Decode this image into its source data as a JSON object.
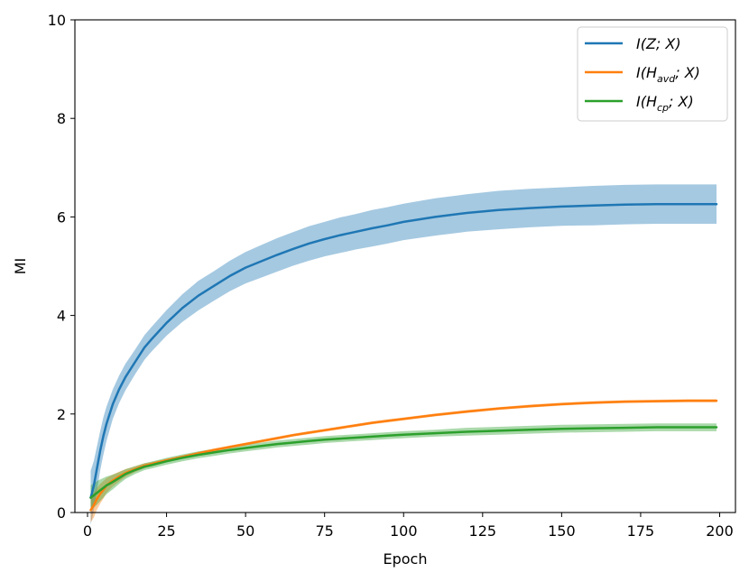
{
  "chart_data": {
    "type": "line",
    "xlabel": "Epoch",
    "ylabel": "MI",
    "xlim": [
      -4,
      205
    ],
    "ylim": [
      0,
      10
    ],
    "xticks": [
      0,
      25,
      50,
      75,
      100,
      125,
      150,
      175,
      200
    ],
    "yticks": [
      0,
      2,
      4,
      6,
      8,
      10
    ],
    "grid": false,
    "legend_position": "top-right",
    "x": [
      1,
      2,
      3,
      4,
      5,
      6,
      8,
      10,
      12,
      15,
      18,
      20,
      25,
      30,
      35,
      40,
      45,
      50,
      55,
      60,
      65,
      70,
      75,
      80,
      85,
      90,
      95,
      100,
      110,
      120,
      130,
      140,
      150,
      160,
      170,
      180,
      190,
      199
    ],
    "series": [
      {
        "name": "I(Z;X)",
        "legend": {
          "base": "I(Z; X)",
          "sub": ""
        },
        "color": "#1f77b4",
        "band_color": "#1f77b4",
        "values": [
          0.3,
          0.55,
          0.9,
          1.25,
          1.55,
          1.8,
          2.2,
          2.5,
          2.75,
          3.05,
          3.35,
          3.5,
          3.85,
          4.15,
          4.4,
          4.6,
          4.8,
          4.97,
          5.1,
          5.23,
          5.35,
          5.46,
          5.55,
          5.63,
          5.7,
          5.77,
          5.83,
          5.9,
          6.0,
          6.08,
          6.14,
          6.18,
          6.21,
          6.23,
          6.25,
          6.26,
          6.26,
          6.26
        ],
        "band": [
          0.55,
          0.5,
          0.45,
          0.4,
          0.38,
          0.35,
          0.3,
          0.28,
          0.27,
          0.25,
          0.25,
          0.25,
          0.26,
          0.28,
          0.3,
          0.3,
          0.31,
          0.32,
          0.33,
          0.34,
          0.34,
          0.35,
          0.35,
          0.36,
          0.36,
          0.37,
          0.37,
          0.37,
          0.38,
          0.38,
          0.39,
          0.39,
          0.39,
          0.4,
          0.4,
          0.4,
          0.4,
          0.4
        ]
      },
      {
        "name": "I(H_avd;X)",
        "legend": {
          "base": "I(H",
          "sub": "avd"
        },
        "color": "#ff7f0e",
        "band_color": "#ff7f0e",
        "values": [
          0.05,
          0.15,
          0.28,
          0.38,
          0.46,
          0.55,
          0.65,
          0.73,
          0.8,
          0.88,
          0.95,
          0.98,
          1.06,
          1.13,
          1.2,
          1.27,
          1.33,
          1.39,
          1.45,
          1.51,
          1.57,
          1.62,
          1.67,
          1.72,
          1.77,
          1.82,
          1.86,
          1.9,
          1.98,
          2.05,
          2.11,
          2.16,
          2.2,
          2.23,
          2.25,
          2.26,
          2.27,
          2.27
        ],
        "band": [
          0.25,
          0.25,
          0.22,
          0.2,
          0.18,
          0.15,
          0.12,
          0.1,
          0.08,
          0.06,
          0.05,
          0.04,
          0.03,
          0.03,
          0.03,
          0.03,
          0.03,
          0.03,
          0.03,
          0.03,
          0.03,
          0.03,
          0.03,
          0.03,
          0.03,
          0.03,
          0.03,
          0.03,
          0.03,
          0.03,
          0.03,
          0.03,
          0.03,
          0.03,
          0.03,
          0.03,
          0.03,
          0.03
        ]
      },
      {
        "name": "I(H_cp;X)",
        "legend": {
          "base": "I(H",
          "sub": "cp"
        },
        "color": "#2ca02c",
        "band_color": "#2ca02c",
        "values": [
          0.3,
          0.35,
          0.4,
          0.45,
          0.5,
          0.55,
          0.62,
          0.7,
          0.78,
          0.86,
          0.93,
          0.96,
          1.04,
          1.11,
          1.17,
          1.22,
          1.27,
          1.31,
          1.35,
          1.39,
          1.42,
          1.45,
          1.48,
          1.5,
          1.52,
          1.54,
          1.56,
          1.58,
          1.61,
          1.64,
          1.66,
          1.68,
          1.7,
          1.71,
          1.72,
          1.73,
          1.73,
          1.73
        ],
        "band": [
          0.25,
          0.25,
          0.24,
          0.22,
          0.2,
          0.18,
          0.15,
          0.12,
          0.1,
          0.08,
          0.07,
          0.07,
          0.07,
          0.07,
          0.07,
          0.07,
          0.07,
          0.07,
          0.07,
          0.07,
          0.07,
          0.07,
          0.07,
          0.07,
          0.07,
          0.07,
          0.07,
          0.07,
          0.07,
          0.08,
          0.08,
          0.08,
          0.08,
          0.08,
          0.08,
          0.08,
          0.08,
          0.08
        ]
      }
    ]
  }
}
